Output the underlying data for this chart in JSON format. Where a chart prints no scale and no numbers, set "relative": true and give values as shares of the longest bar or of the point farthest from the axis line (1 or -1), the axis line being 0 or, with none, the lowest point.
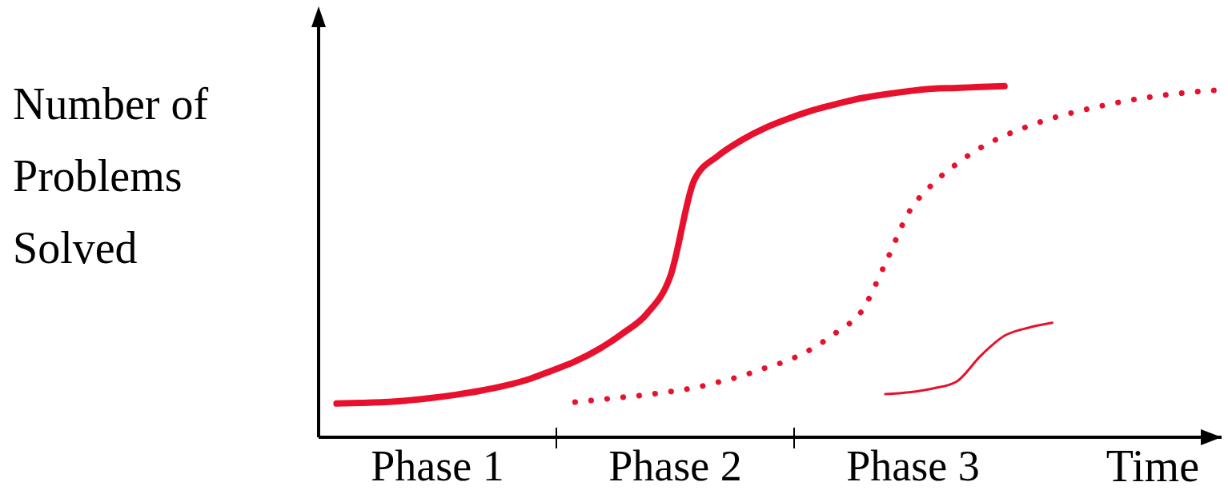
{
  "chart_data": {
    "type": "line",
    "relative": true,
    "ylabel": "Number of Problems Solved",
    "xlabel": "Time",
    "categories": [
      null,
      null,
      null,
      null,
      null,
      null,
      null,
      null,
      null,
      null,
      null,
      null,
      null,
      null,
      null,
      null,
      null,
      null,
      null,
      null,
      null,
      null,
      null,
      null,
      null,
      null,
      null,
      null,
      null,
      null,
      null,
      null,
      null,
      null,
      null,
      null,
      null,
      null
    ],
    "annotations": [
      "Phase 1",
      "Phase 2",
      "Phase 3"
    ],
    "series": [
      {
        "color": "#e8112d",
        "line_style": "solid",
        "values": [
          0.096,
          0.098,
          0.1,
          0.105,
          0.112,
          0.121,
          0.132,
          0.146,
          0.164,
          0.189,
          0.216,
          0.251,
          0.296,
          0.351,
          0.46,
          0.733,
          0.802,
          0.847,
          0.882,
          0.909,
          0.932,
          0.95,
          0.966,
          0.977,
          0.986,
          0.993,
          0.995,
          0.998,
          1.0,
          null,
          null,
          null,
          null,
          null,
          null,
          null,
          null,
          null
        ]
      },
      {
        "color": "#e8112d",
        "line_style": "dotted",
        "values": [
          null,
          null,
          null,
          null,
          null,
          null,
          null,
          null,
          null,
          null,
          0.1,
          0.107,
          0.114,
          0.121,
          0.13,
          0.141,
          0.157,
          0.175,
          0.198,
          0.221,
          0.255,
          0.301,
          0.358,
          0.494,
          0.642,
          0.722,
          0.779,
          0.825,
          0.859,
          0.886,
          0.909,
          0.927,
          0.943,
          0.957,
          0.968,
          0.977,
          0.984,
          0.989
        ]
      },
      {
        "color": "#e8112d",
        "line_style": "solid",
        "values": [
          null,
          null,
          null,
          null,
          null,
          null,
          null,
          null,
          null,
          null,
          null,
          null,
          null,
          null,
          null,
          null,
          null,
          null,
          null,
          null,
          null,
          null,
          null,
          0.123,
          0.128,
          0.139,
          0.159,
          0.232,
          0.289,
          0.312,
          0.326,
          null,
          null,
          null,
          null,
          null,
          null,
          null
        ]
      }
    ]
  }
}
